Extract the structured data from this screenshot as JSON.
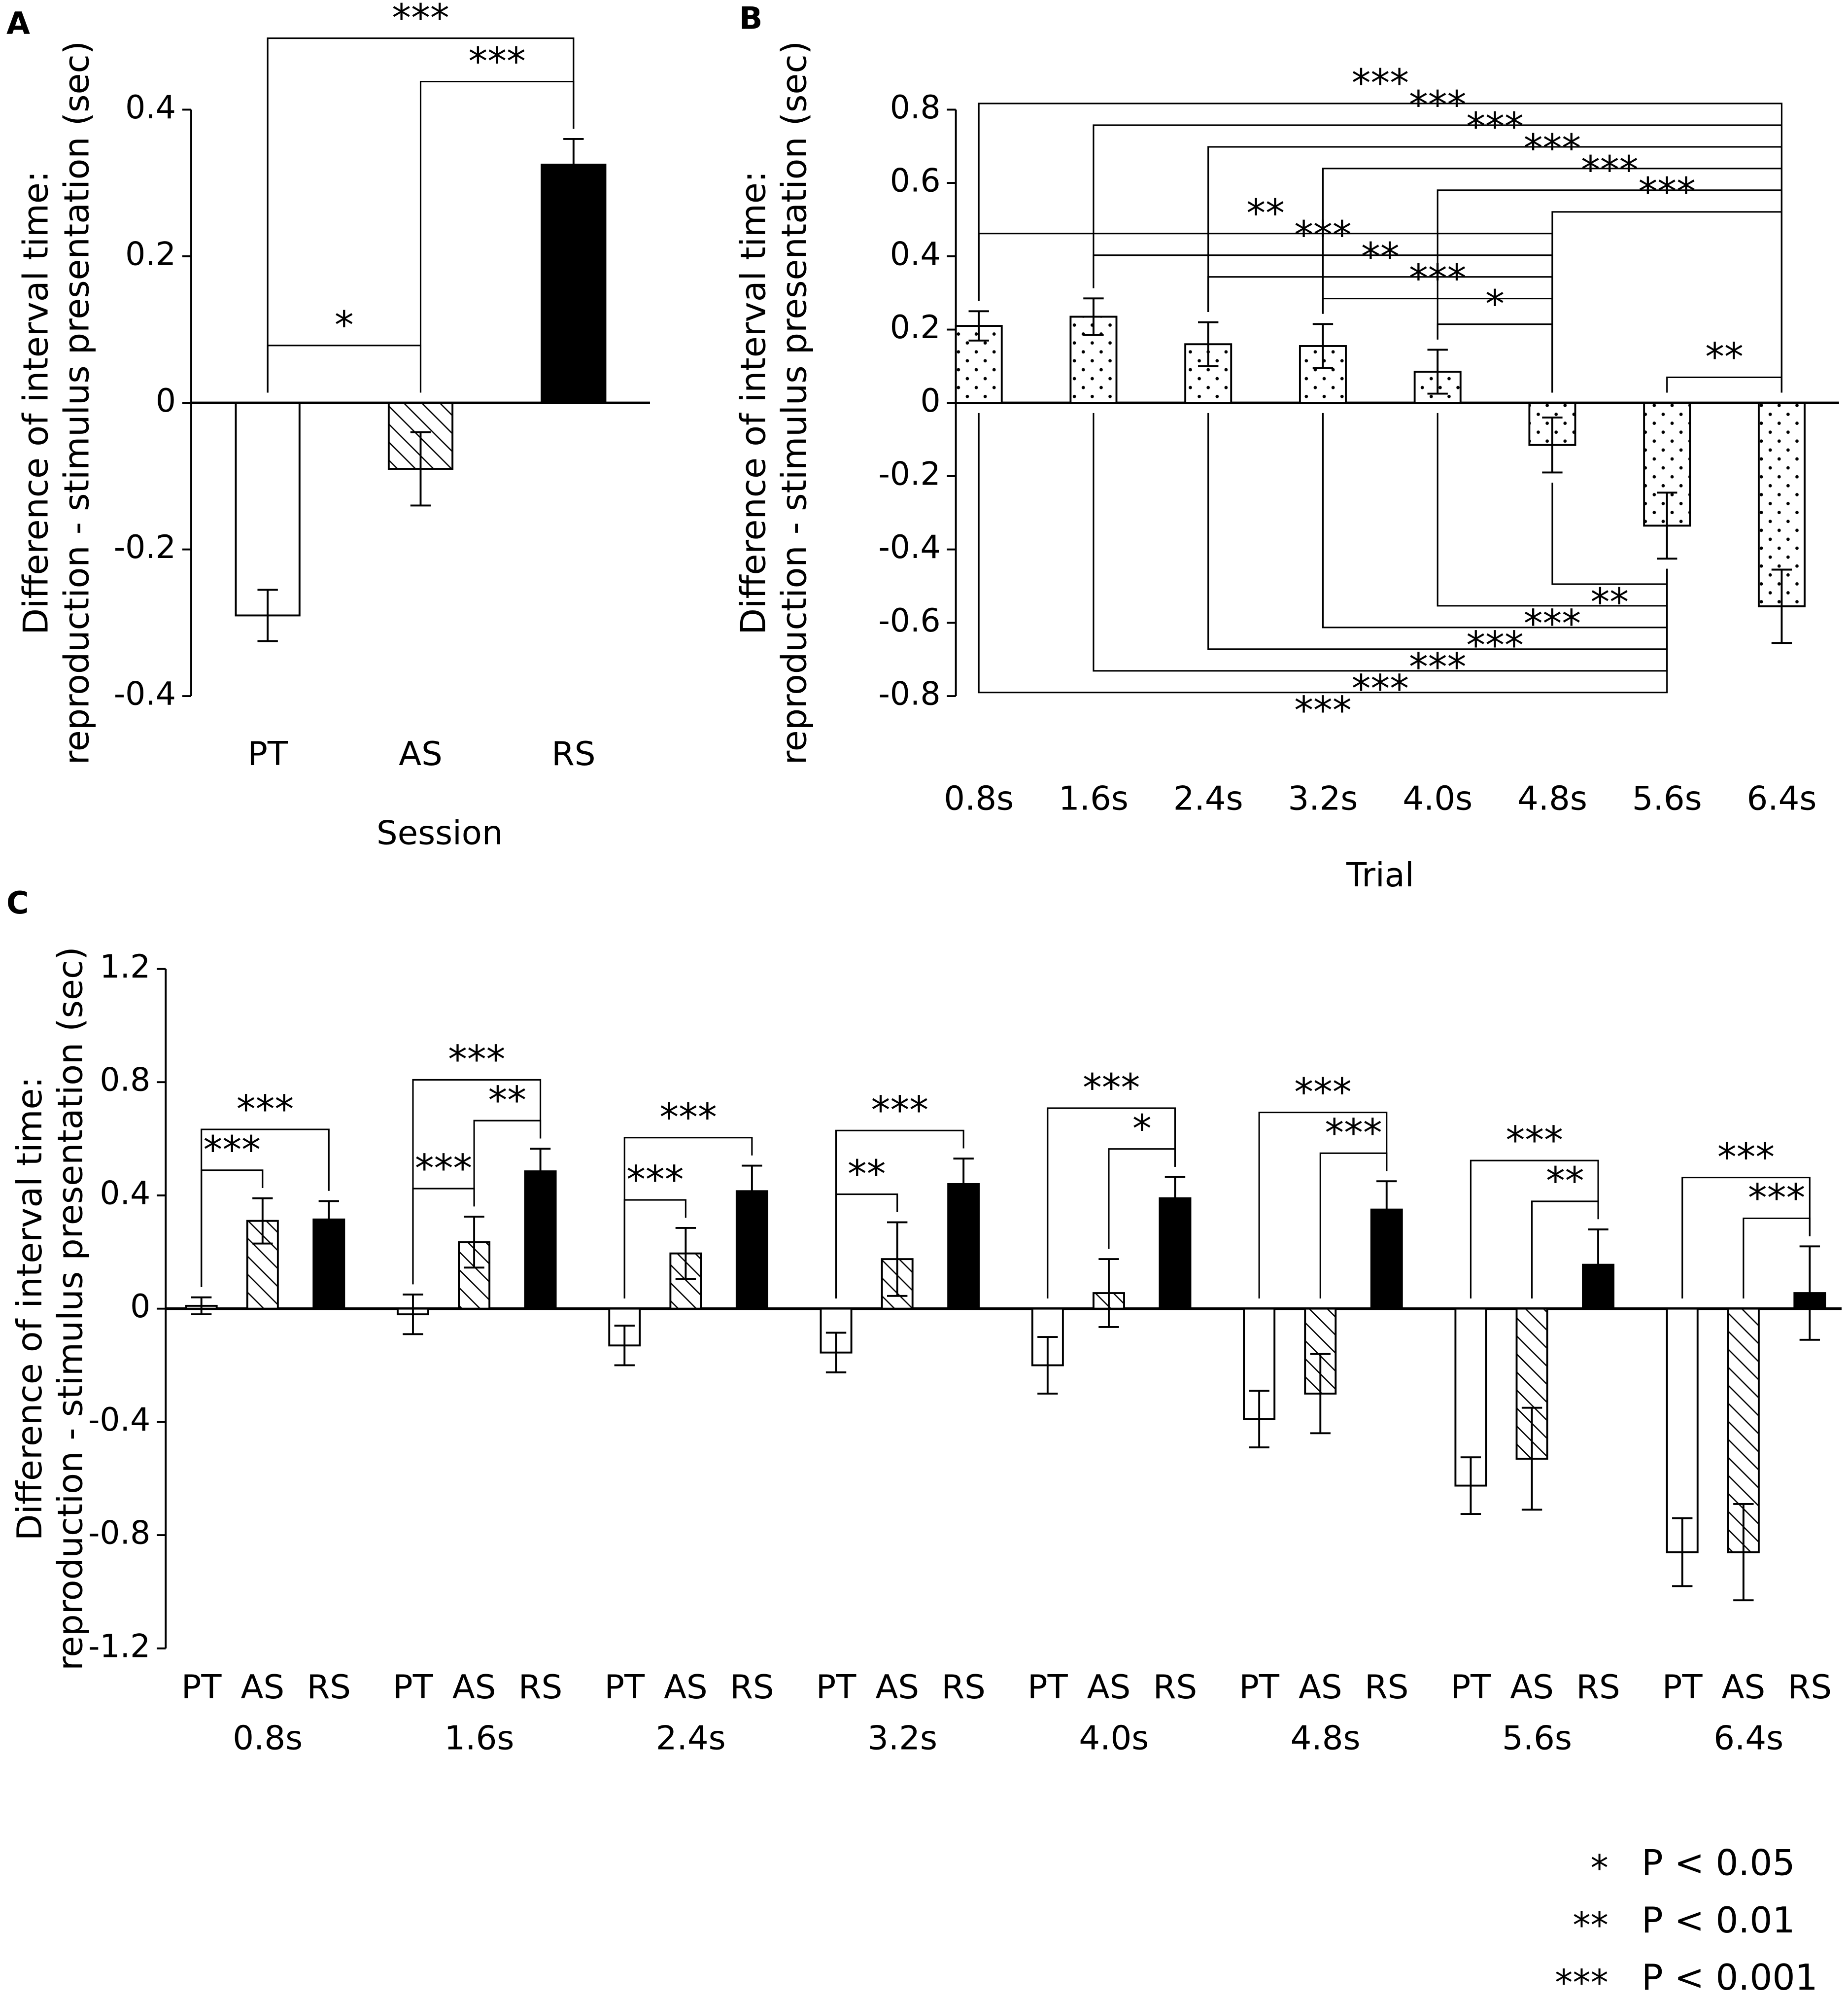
{
  "chart_data": [
    {
      "panel": "A",
      "type": "bar",
      "categories": [
        "PT",
        "AS",
        "RS"
      ],
      "values": [
        -0.29,
        -0.09,
        0.325
      ],
      "errors": [
        0.035,
        0.05,
        0.035
      ],
      "fills": [
        "white",
        "hatch",
        "black"
      ],
      "xlabel": "Session",
      "ylabel": [
        "Difference of interval time:",
        "reproduction - stimulus presentation (sec)"
      ],
      "ylim": [
        -0.4,
        0.4
      ],
      "yticks": [
        -0.4,
        -0.2,
        0,
        0.2,
        0.4
      ],
      "brackets": [
        {
          "between": [
            "PT",
            "AS"
          ],
          "label": "*",
          "side": "above"
        },
        {
          "between": [
            "AS",
            "RS"
          ],
          "label": "***",
          "side": "above"
        },
        {
          "between": [
            "PT",
            "RS"
          ],
          "label": "***",
          "side": "above"
        }
      ]
    },
    {
      "panel": "B",
      "type": "bar",
      "categories": [
        "0.8s",
        "1.6s",
        "2.4s",
        "3.2s",
        "4.0s",
        "4.8s",
        "5.6s",
        "6.4s"
      ],
      "values": [
        0.21,
        0.235,
        0.16,
        0.155,
        0.085,
        -0.115,
        -0.335,
        -0.555
      ],
      "errors": [
        0.04,
        0.05,
        0.06,
        0.06,
        0.06,
        0.075,
        0.09,
        0.1
      ],
      "fill": "dots",
      "xlabel": "Trial",
      "ylabel": [
        "Difference of interval time:",
        "reproduction - stimulus presentation (sec)"
      ],
      "ylim": [
        -0.8,
        0.8
      ],
      "yticks": [
        -0.8,
        -0.6,
        -0.4,
        -0.2,
        0,
        0.2,
        0.4,
        0.6,
        0.8
      ],
      "brackets": [
        {
          "between": [
            "4.0s",
            "4.8s"
          ],
          "label": "*",
          "side": "above"
        },
        {
          "between": [
            "3.2s",
            "4.8s"
          ],
          "label": "***",
          "side": "above"
        },
        {
          "between": [
            "2.4s",
            "4.8s"
          ],
          "label": "**",
          "side": "above"
        },
        {
          "between": [
            "1.6s",
            "4.8s"
          ],
          "label": "***",
          "side": "above"
        },
        {
          "between": [
            "0.8s",
            "4.8s"
          ],
          "label": "**",
          "side": "above"
        },
        {
          "between": [
            "5.6s",
            "6.4s"
          ],
          "label": "**",
          "side": "above"
        },
        {
          "between": [
            "4.8s",
            "6.4s"
          ],
          "label": "***",
          "side": "above"
        },
        {
          "between": [
            "4.0s",
            "6.4s"
          ],
          "label": "***",
          "side": "above"
        },
        {
          "between": [
            "3.2s",
            "6.4s"
          ],
          "label": "***",
          "side": "above"
        },
        {
          "between": [
            "2.4s",
            "6.4s"
          ],
          "label": "***",
          "side": "above"
        },
        {
          "between": [
            "1.6s",
            "6.4s"
          ],
          "label": "***",
          "side": "above"
        },
        {
          "between": [
            "0.8s",
            "6.4s"
          ],
          "label": "***",
          "side": "above"
        },
        {
          "between": [
            "4.8s",
            "5.6s"
          ],
          "label": "**",
          "side": "below"
        },
        {
          "between": [
            "4.0s",
            "5.6s"
          ],
          "label": "***",
          "side": "below"
        },
        {
          "between": [
            "3.2s",
            "5.6s"
          ],
          "label": "***",
          "side": "below"
        },
        {
          "between": [
            "2.4s",
            "5.6s"
          ],
          "label": "***",
          "side": "below"
        },
        {
          "between": [
            "1.6s",
            "5.6s"
          ],
          "label": "***",
          "side": "below"
        },
        {
          "between": [
            "0.8s",
            "5.6s"
          ],
          "label": "***",
          "side": "below"
        }
      ]
    },
    {
      "panel": "C",
      "type": "grouped_bar",
      "groups": [
        "0.8s",
        "1.6s",
        "2.4s",
        "3.2s",
        "4.0s",
        "4.8s",
        "5.6s",
        "6.4s"
      ],
      "series": [
        {
          "name": "PT",
          "fill": "white",
          "values": [
            0.01,
            -0.02,
            -0.13,
            -0.155,
            -0.2,
            -0.39,
            -0.625,
            -0.86
          ],
          "errors": [
            0.03,
            0.07,
            0.07,
            0.07,
            0.1,
            0.1,
            0.1,
            0.12
          ]
        },
        {
          "name": "AS",
          "fill": "hatch",
          "values": [
            0.31,
            0.235,
            0.195,
            0.175,
            0.055,
            -0.3,
            -0.53,
            -0.86
          ],
          "errors": [
            0.08,
            0.09,
            0.09,
            0.13,
            0.12,
            0.14,
            0.18,
            0.17
          ]
        },
        {
          "name": "RS",
          "fill": "black",
          "values": [
            0.315,
            0.485,
            0.415,
            0.44,
            0.39,
            0.35,
            0.155,
            0.055
          ],
          "errors": [
            0.065,
            0.08,
            0.09,
            0.09,
            0.075,
            0.1,
            0.125,
            0.165
          ]
        }
      ],
      "ylabel": [
        "Difference of interval time:",
        "reproduction - stimulus presentation (sec)"
      ],
      "ylim": [
        -1.2,
        1.2
      ],
      "yticks": [
        -1.2,
        -0.8,
        -0.4,
        0,
        0.4,
        0.8,
        1.2
      ],
      "brackets": [
        {
          "group": "0.8s",
          "between": [
            "PT",
            "AS"
          ],
          "label": "***",
          "side": "above"
        },
        {
          "group": "0.8s",
          "between": [
            "PT",
            "RS"
          ],
          "label": "***",
          "side": "above"
        },
        {
          "group": "1.6s",
          "between": [
            "PT",
            "AS"
          ],
          "label": "***",
          "side": "above"
        },
        {
          "group": "1.6s",
          "between": [
            "AS",
            "RS"
          ],
          "label": "**",
          "side": "above"
        },
        {
          "group": "1.6s",
          "between": [
            "PT",
            "RS"
          ],
          "label": "***",
          "side": "above"
        },
        {
          "group": "2.4s",
          "between": [
            "PT",
            "AS"
          ],
          "label": "***",
          "side": "above"
        },
        {
          "group": "2.4s",
          "between": [
            "PT",
            "RS"
          ],
          "label": "***",
          "side": "above"
        },
        {
          "group": "3.2s",
          "between": [
            "PT",
            "AS"
          ],
          "label": "**",
          "side": "above"
        },
        {
          "group": "3.2s",
          "between": [
            "PT",
            "RS"
          ],
          "label": "***",
          "side": "above"
        },
        {
          "group": "4.0s",
          "between": [
            "AS",
            "RS"
          ],
          "label": "*",
          "side": "above"
        },
        {
          "group": "4.0s",
          "between": [
            "PT",
            "RS"
          ],
          "label": "***",
          "side": "above"
        },
        {
          "group": "4.8s",
          "between": [
            "AS",
            "RS"
          ],
          "label": "***",
          "side": "above"
        },
        {
          "group": "4.8s",
          "between": [
            "PT",
            "RS"
          ],
          "label": "***",
          "side": "above"
        },
        {
          "group": "5.6s",
          "between": [
            "AS",
            "RS"
          ],
          "label": "**",
          "side": "above"
        },
        {
          "group": "5.6s",
          "between": [
            "PT",
            "RS"
          ],
          "label": "***",
          "side": "above"
        },
        {
          "group": "6.4s",
          "between": [
            "AS",
            "RS"
          ],
          "label": "***",
          "side": "above"
        },
        {
          "group": "6.4s",
          "between": [
            "PT",
            "RS"
          ],
          "label": "***",
          "side": "above"
        }
      ]
    }
  ],
  "significance_legend": [
    {
      "symbol": "*",
      "text": "P < 0.05"
    },
    {
      "symbol": "**",
      "text": "P < 0.01"
    },
    {
      "symbol": "***",
      "text": "P < 0.001"
    }
  ]
}
